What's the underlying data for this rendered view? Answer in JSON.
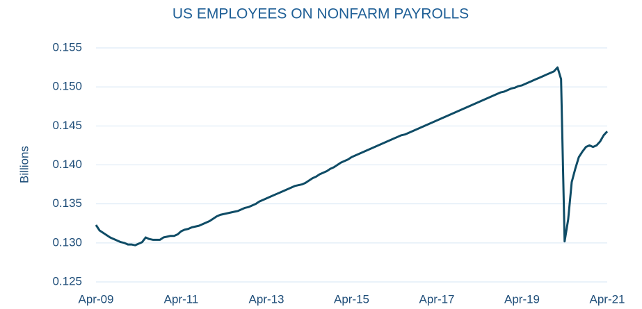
{
  "chart_data": {
    "type": "line",
    "title": "US EMPLOYEES ON NONFARM PAYROLLS",
    "y_label": "Billions",
    "categories": [
      "Apr-09",
      null,
      null,
      null,
      null,
      null,
      null,
      null,
      null,
      null,
      null,
      null,
      null,
      null,
      null,
      null,
      null,
      null,
      null,
      null,
      null,
      null,
      null,
      null,
      "Apr-11",
      null,
      null,
      null,
      null,
      null,
      null,
      null,
      null,
      null,
      null,
      null,
      null,
      null,
      null,
      null,
      null,
      null,
      null,
      null,
      null,
      null,
      null,
      null,
      "Apr-13",
      null,
      null,
      null,
      null,
      null,
      null,
      null,
      null,
      null,
      null,
      null,
      null,
      null,
      null,
      null,
      null,
      null,
      null,
      null,
      null,
      null,
      null,
      null,
      "Apr-15",
      null,
      null,
      null,
      null,
      null,
      null,
      null,
      null,
      null,
      null,
      null,
      null,
      null,
      null,
      null,
      null,
      null,
      null,
      null,
      null,
      null,
      null,
      null,
      "Apr-17",
      null,
      null,
      null,
      null,
      null,
      null,
      null,
      null,
      null,
      null,
      null,
      null,
      null,
      null,
      null,
      null,
      null,
      null,
      null,
      null,
      null,
      null,
      null,
      "Apr-19",
      null,
      null,
      null,
      null,
      null,
      null,
      null,
      null,
      null,
      null,
      null,
      null,
      null,
      null,
      null,
      null,
      null,
      null,
      null,
      null,
      null,
      null,
      null,
      "Apr-21"
    ],
    "series": [
      {
        "color": "#0f4c66",
        "values": [
          0.1323,
          0.1316,
          0.1313,
          0.131,
          0.1307,
          0.1305,
          0.1303,
          0.1301,
          0.13,
          0.1298,
          0.1298,
          0.1297,
          0.1299,
          0.1301,
          0.1307,
          0.1305,
          0.1304,
          0.1304,
          0.1304,
          0.1307,
          0.1308,
          0.1309,
          0.1309,
          0.1311,
          0.1315,
          0.1317,
          0.1318,
          0.132,
          0.1321,
          0.1322,
          0.1324,
          0.1326,
          0.1328,
          0.1331,
          0.1334,
          0.1336,
          0.1337,
          0.1338,
          0.1339,
          0.134,
          0.1341,
          0.1343,
          0.1345,
          0.1346,
          0.1348,
          0.135,
          0.1353,
          0.1355,
          0.1357,
          0.1359,
          0.1361,
          0.1363,
          0.1365,
          0.1367,
          0.1369,
          0.1371,
          0.1373,
          0.1374,
          0.1375,
          0.1377,
          0.138,
          0.1383,
          0.1385,
          0.1388,
          0.139,
          0.1392,
          0.1395,
          0.1397,
          0.14,
          0.1403,
          0.1405,
          0.1407,
          0.141,
          0.1412,
          0.1414,
          0.1416,
          0.1418,
          0.142,
          0.1422,
          0.1424,
          0.1426,
          0.1428,
          0.143,
          0.1432,
          0.1434,
          0.1436,
          0.1438,
          0.1439,
          0.1441,
          0.1443,
          0.1445,
          0.1447,
          0.1449,
          0.1451,
          0.1453,
          0.1455,
          0.1457,
          0.1459,
          0.1461,
          0.1463,
          0.1465,
          0.1467,
          0.1469,
          0.1471,
          0.1473,
          0.1475,
          0.1477,
          0.1479,
          0.1481,
          0.1483,
          0.1485,
          0.1487,
          0.1489,
          0.1491,
          0.1493,
          0.1494,
          0.1496,
          0.1498,
          0.1499,
          0.1501,
          0.1502,
          0.1504,
          0.1506,
          0.1508,
          0.151,
          0.1512,
          0.1514,
          0.1516,
          0.1518,
          0.152,
          0.1525,
          0.151,
          0.1302,
          0.133,
          0.1378,
          0.1395,
          0.141,
          0.1417,
          0.1423,
          0.1425,
          0.1423,
          0.1425,
          0.143,
          0.1438,
          0.1443
        ]
      }
    ],
    "ylim": [
      0.125,
      0.155
    ],
    "yticks": [
      0.125,
      {
        "value": 0.13,
        "label": "0.130"
      },
      0.135,
      {
        "value": 0.14,
        "label": "0.140"
      },
      0.145,
      {
        "value": 0.15,
        "label": "0.150"
      },
      0.155
    ],
    "grid": true
  }
}
